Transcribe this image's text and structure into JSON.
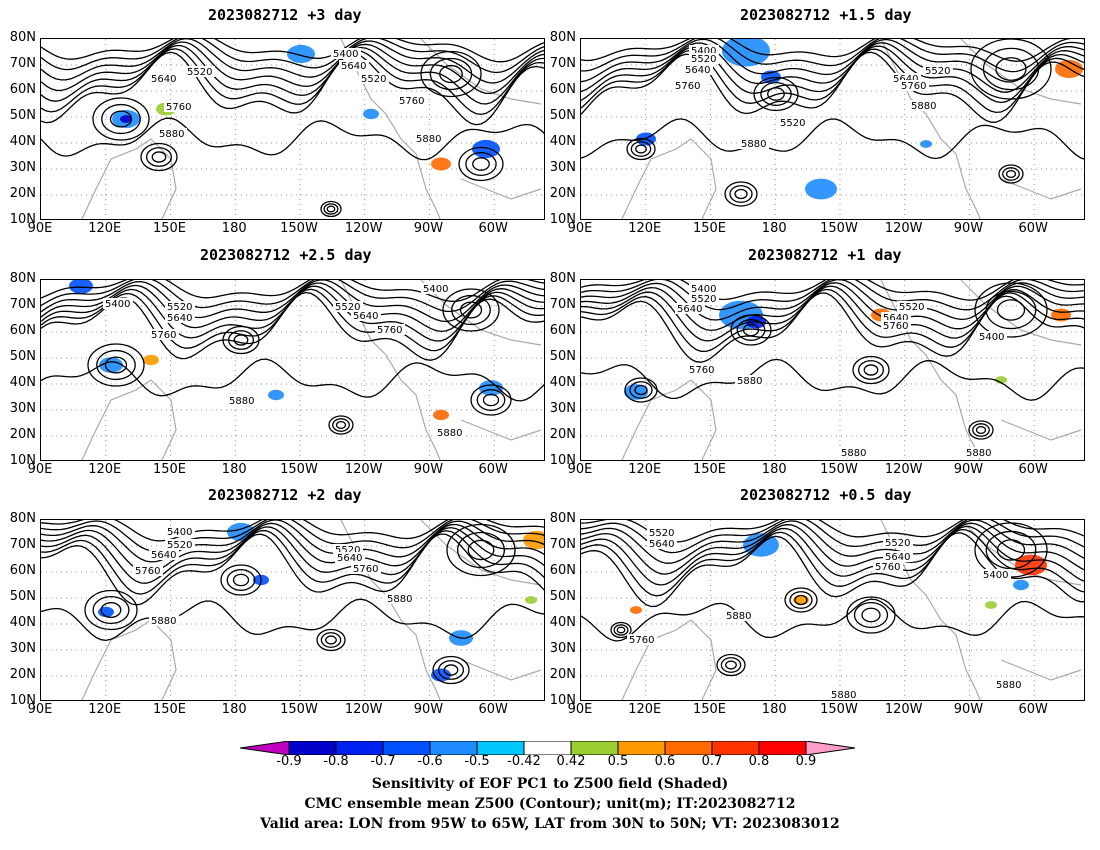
{
  "panels": [
    {
      "title": "2023082712 +3 day"
    },
    {
      "title": "2023082712 +1.5 day"
    },
    {
      "title": "2023082712 +2.5 day"
    },
    {
      "title": "2023082712 +1 day"
    },
    {
      "title": "2023082712 +2 day"
    },
    {
      "title": "2023082712 +0.5 day"
    }
  ],
  "axes": {
    "lat_labels": [
      "80N",
      "70N",
      "60N",
      "50N",
      "40N",
      "30N",
      "20N",
      "10N"
    ],
    "lon_labels": [
      "90E",
      "120E",
      "150E",
      "180",
      "150W",
      "120W",
      "90W",
      "60W"
    ]
  },
  "contour_labels": [
    [
      "5400",
      "5520",
      "5640",
      "5520",
      "5640",
      "5760",
      "5760",
      "5880",
      "5880"
    ],
    [
      "5400",
      "5520",
      "5640",
      "5760",
      "5520",
      "5640",
      "5760",
      "5520",
      "5880",
      "5880"
    ],
    [
      "5400",
      "5400",
      "5520",
      "5520",
      "5640",
      "5640",
      "5760",
      "5760",
      "5880",
      "5880"
    ],
    [
      "5400",
      "5520",
      "5640",
      "5520",
      "5640",
      "5760",
      "5760",
      "5880",
      "5400",
      "5880",
      "5880"
    ],
    [
      "5400",
      "5520",
      "5640",
      "5760",
      "5520",
      "5640",
      "5760",
      "5880",
      "5880"
    ],
    [
      "5520",
      "5640",
      "5520",
      "5640",
      "5760",
      "5400",
      "5880",
      "5760",
      "5880",
      "5880"
    ]
  ],
  "colorbar": {
    "levels": [
      "-0.9",
      "-0.8",
      "-0.7",
      "-0.6",
      "-0.5",
      "-0.42",
      "0.42",
      "0.5",
      "0.6",
      "0.7",
      "0.8",
      "0.9"
    ],
    "colors": [
      "#c000c0",
      "#0000c8",
      "#0020f0",
      "#0050ff",
      "#1e8cff",
      "#00c8ff",
      "#ffffff",
      "#9acd32",
      "#ff9a00",
      "#ff6a00",
      "#ff3200",
      "#ff0000",
      "#ff9ec8"
    ]
  },
  "captions": [
    "Sensitivity of EOF PC1 to Z500 field (Shaded)",
    "CMC ensemble mean Z500 (Contour); unit(m); IT:2023082712",
    "Valid area: LON from 95W to 65W, LAT from 30N to 50N; VT: 2023083012"
  ]
}
